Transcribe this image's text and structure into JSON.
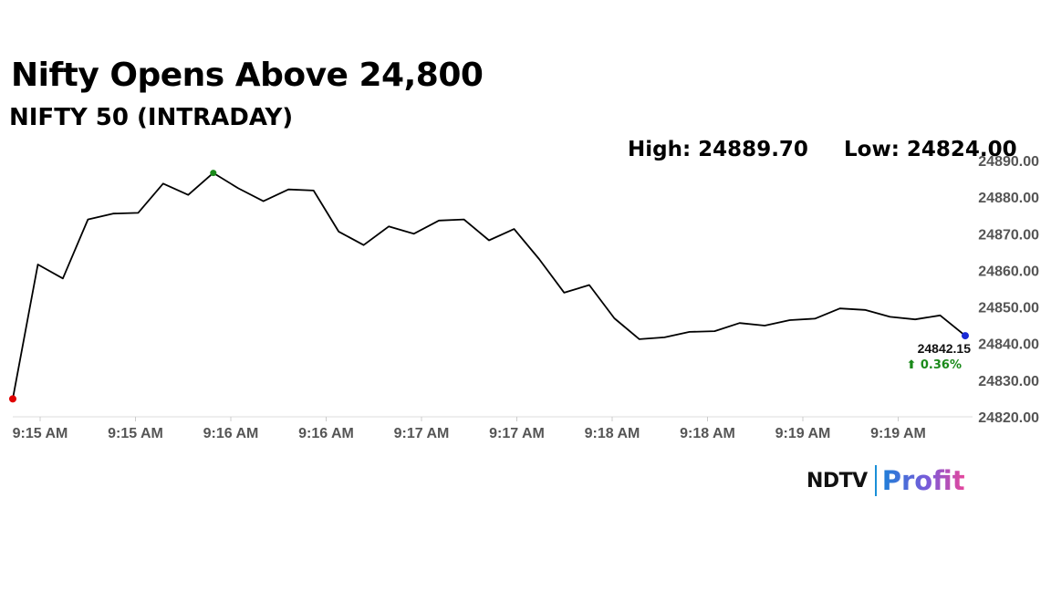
{
  "header": {
    "title": "Nifty Opens Above 24,800",
    "subtitle": "NIFTY 50 (INTRADAY)"
  },
  "stats": {
    "high": "High: 24889.70",
    "low": "Low: 24824.00"
  },
  "logo": {
    "name": "NDTV",
    "product": "Profit",
    "mark": "ndtv-profit-logo"
  },
  "chart_data": {
    "type": "line",
    "title": "NIFTY 50 (INTRADAY)",
    "xlabel": "",
    "ylabel": "",
    "x_tick_labels": [
      "9:15 AM",
      "9:15 AM",
      "9:16 AM",
      "9:16 AM",
      "9:17 AM",
      "9:17 AM",
      "9:18 AM",
      "9:18 AM",
      "9:19 AM",
      "9:19 AM"
    ],
    "y_tick_labels": [
      "24820.00",
      "24830.00",
      "24840.00",
      "24850.00",
      "24860.00",
      "24870.00",
      "24880.00",
      "24890.00"
    ],
    "ylim": [
      24820,
      24890
    ],
    "grid": false,
    "y_axis_side": "right",
    "series": [
      {
        "color": "#000000",
        "values": [
          24824.9,
          24861.6,
          24857.8,
          24873.9,
          24875.5,
          24875.7,
          24883.7,
          24880.6,
          24886.6,
          24882.4,
          24878.9,
          24882.1,
          24881.8,
          24870.6,
          24866.9,
          24872.0,
          24870.0,
          24873.6,
          24873.9,
          24868.2,
          24871.3,
          24863.1,
          24853.9,
          24856.0,
          24846.9,
          24841.2,
          24841.7,
          24843.2,
          24843.4,
          24845.6,
          24844.9,
          24846.4,
          24846.8,
          24849.6,
          24849.2,
          24847.3,
          24846.6,
          24847.7,
          24842.15
        ]
      }
    ],
    "markers": {
      "start": {
        "color": "#e00000"
      },
      "high": {
        "color": "#1a8a1a"
      },
      "last": {
        "color": "#1a2bd6"
      }
    },
    "last_value_label": "24842.15",
    "change_label": "⬆ 0.36%",
    "change_color": "#1a8a1a"
  }
}
